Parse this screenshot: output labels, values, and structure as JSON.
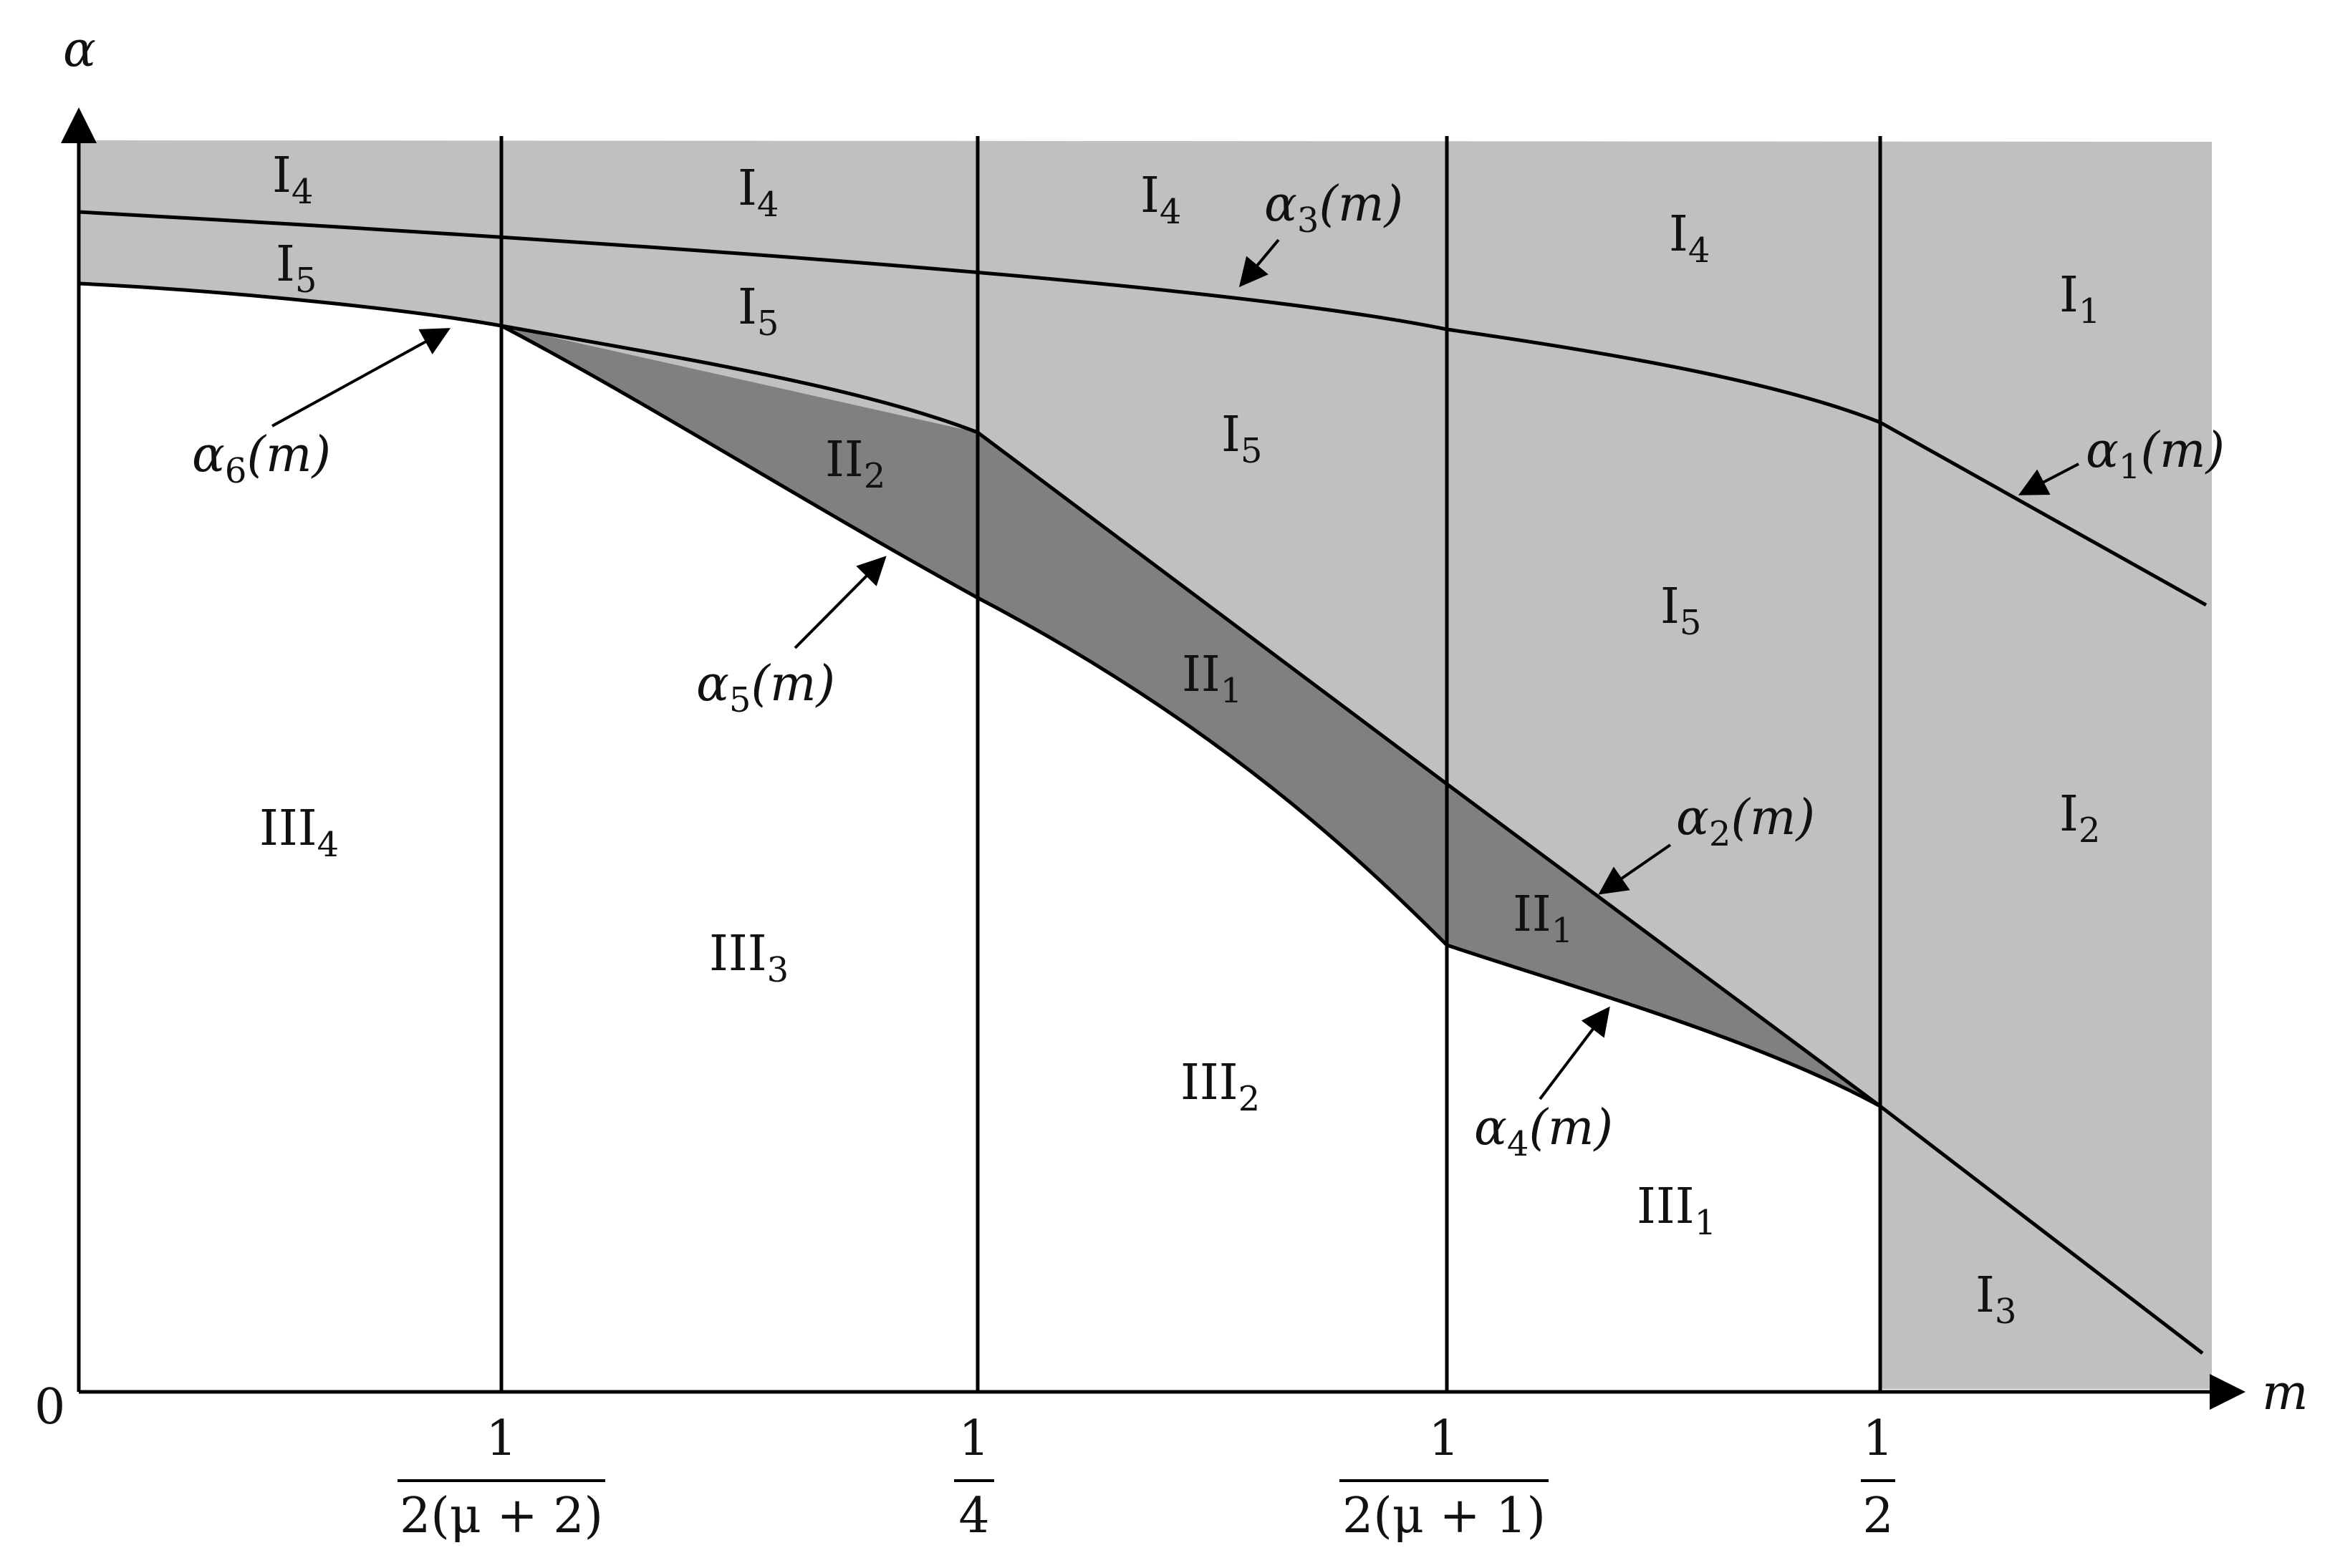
{
  "axes": {
    "x_label": "m",
    "y_label": "α",
    "origin": "0"
  },
  "ticks": [
    {
      "num": "1",
      "den": "2(μ + 2)"
    },
    {
      "num": "1",
      "den": "4"
    },
    {
      "num": "1",
      "den": "2(μ + 1)"
    },
    {
      "num": "1",
      "den": "2"
    }
  ],
  "regions": {
    "I4_a": {
      "base": "I",
      "sub": "4"
    },
    "I4_b": {
      "base": "I",
      "sub": "4"
    },
    "I4_c": {
      "base": "I",
      "sub": "4"
    },
    "I4_d": {
      "base": "I",
      "sub": "4"
    },
    "I5_a": {
      "base": "I",
      "sub": "5"
    },
    "I5_b": {
      "base": "I",
      "sub": "5"
    },
    "I5_c": {
      "base": "I",
      "sub": "5"
    },
    "I5_d": {
      "base": "I",
      "sub": "5"
    },
    "I1": {
      "base": "I",
      "sub": "1"
    },
    "I2": {
      "base": "I",
      "sub": "2"
    },
    "I3": {
      "base": "I",
      "sub": "3"
    },
    "II2": {
      "base": "II",
      "sub": "2"
    },
    "II1_a": {
      "base": "II",
      "sub": "1"
    },
    "II1_b": {
      "base": "II",
      "sub": "1"
    },
    "III4": {
      "base": "III",
      "sub": "4"
    },
    "III3": {
      "base": "III",
      "sub": "3"
    },
    "III2": {
      "base": "III",
      "sub": "2"
    },
    "III1": {
      "base": "III",
      "sub": "1"
    }
  },
  "curves": {
    "alpha1": {
      "sym": "α",
      "sub": "1",
      "arg": "(m)"
    },
    "alpha2": {
      "sym": "α",
      "sub": "2",
      "arg": "(m)"
    },
    "alpha3": {
      "sym": "α",
      "sub": "3",
      "arg": "(m)"
    },
    "alpha4": {
      "sym": "α",
      "sub": "4",
      "arg": "(m)"
    },
    "alpha5": {
      "sym": "α",
      "sub": "5",
      "arg": "(m)"
    },
    "alpha6": {
      "sym": "α",
      "sub": "6",
      "arg": "(m)"
    }
  },
  "colors": {
    "light_region": "#c0c0c0",
    "dark_region": "#808080",
    "line": "#000000"
  }
}
